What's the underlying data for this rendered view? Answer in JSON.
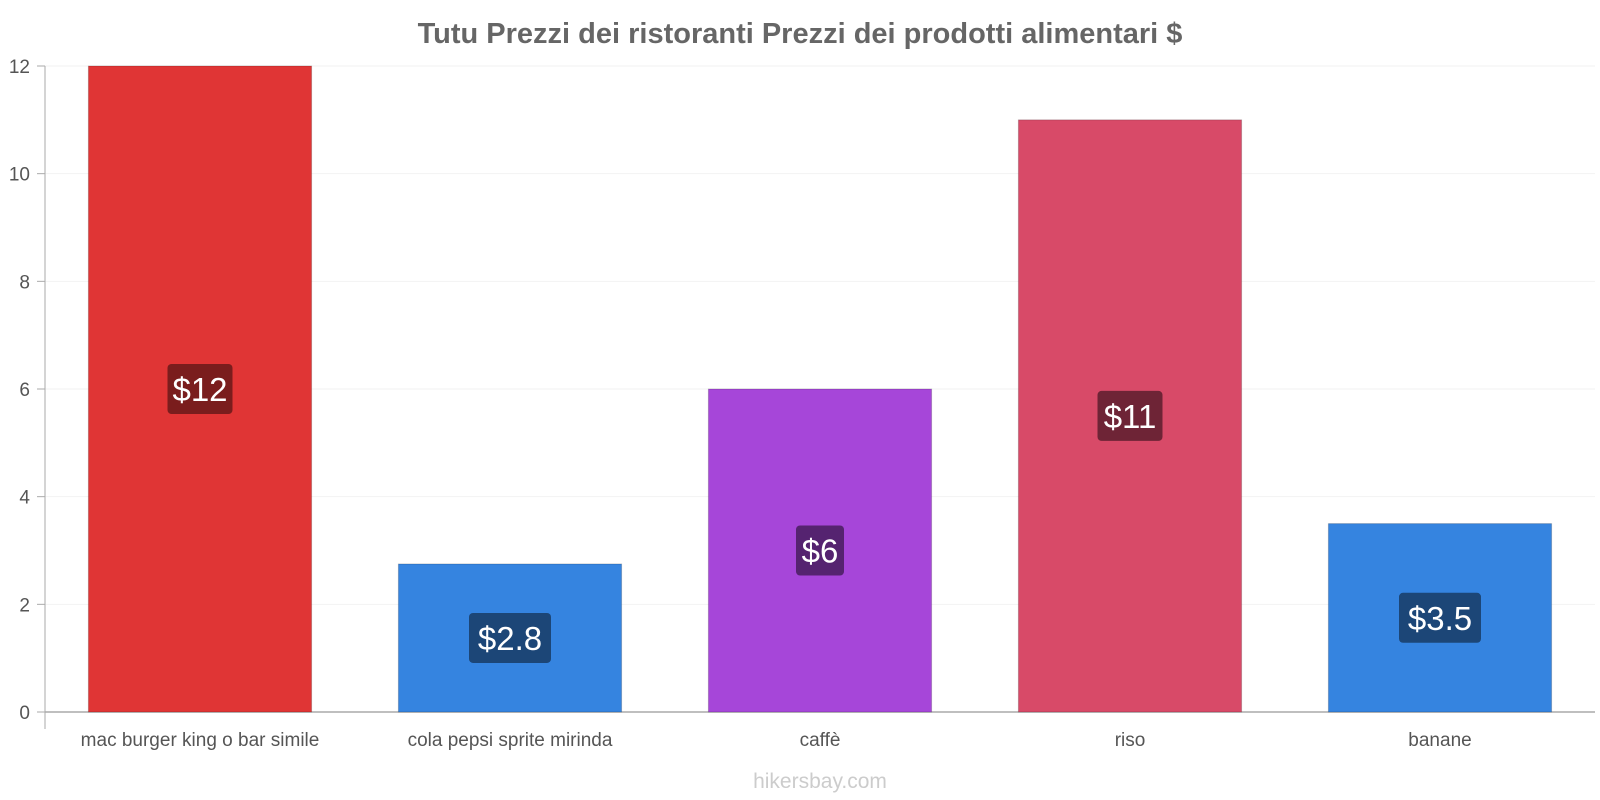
{
  "chart_data": {
    "type": "bar",
    "title": "Tutu Prezzi dei ristoranti Prezzi dei prodotti alimentari $",
    "categories": [
      "mac burger king o bar simile",
      "cola pepsi sprite mirinda",
      "caffè",
      "riso",
      "banane"
    ],
    "values": [
      12,
      2.75,
      6,
      11,
      3.5
    ],
    "data_labels": [
      "$12",
      "$2.8",
      "$6",
      "$11",
      "$3.5"
    ],
    "bar_colors": [
      "#e03535",
      "#3584e0",
      "#a646d9",
      "#d84a68",
      "#3584e0"
    ],
    "label_bg_colors": [
      "#7a1d1d",
      "#1c4677",
      "#552370",
      "#6e2436",
      "#1c4677"
    ],
    "ylim": [
      0,
      12
    ],
    "yticks": [
      0,
      2,
      4,
      6,
      8,
      10,
      12
    ],
    "xlabel": "",
    "ylabel": "",
    "grid": true
  },
  "footer": "hikersbay.com"
}
